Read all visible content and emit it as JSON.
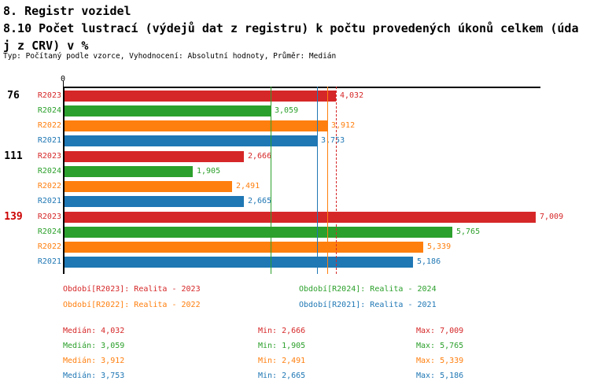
{
  "title": "8. Registr vozidel",
  "subtitle_line1": "8.10 Počet lustrací (výdejů dat z registru) k počtu provedených úkonů celkem (úda",
  "subtitle_line2": "j z CRV) v %",
  "meta_line": "Typ: Počítaný podle vzorce, Vyhodnocení: Absolutní hodnoty, Průměr: Medián",
  "colors": {
    "series": {
      "R2023": "#d62728",
      "R2024": "#2ca02c",
      "R2022": "#ff7f0e",
      "R2021": "#1f77b4"
    },
    "axis": "#000000",
    "highlight_group_label": "#cc0000",
    "group_label": "#000000"
  },
  "chart_data": {
    "type": "bar",
    "orientation": "horizontal",
    "value_axis": {
      "zero_label": "0",
      "xlim": [
        0,
        7100
      ],
      "grid": false
    },
    "series_order": [
      "R2023",
      "R2024",
      "R2022",
      "R2021"
    ],
    "groups": [
      {
        "label": "76",
        "highlighted": false,
        "bars": [
          {
            "series": "R2023",
            "value": 4032,
            "display": "4,032"
          },
          {
            "series": "R2024",
            "value": 3059,
            "display": "3,059"
          },
          {
            "series": "R2022",
            "value": 3912,
            "display": "3,912"
          },
          {
            "series": "R2021",
            "value": 3753,
            "display": "3,753"
          }
        ]
      },
      {
        "label": "111",
        "highlighted": false,
        "bars": [
          {
            "series": "R2023",
            "value": 2666,
            "display": "2,666"
          },
          {
            "series": "R2024",
            "value": 1905,
            "display": "1,905"
          },
          {
            "series": "R2022",
            "value": 2491,
            "display": "2,491"
          },
          {
            "series": "R2021",
            "value": 2665,
            "display": "2,665"
          }
        ]
      },
      {
        "label": "139",
        "highlighted": true,
        "bars": [
          {
            "series": "R2023",
            "value": 7009,
            "display": "7,009"
          },
          {
            "series": "R2024",
            "value": 5765,
            "display": "5,765"
          },
          {
            "series": "R2022",
            "value": 5339,
            "display": "5,339"
          },
          {
            "series": "R2021",
            "value": 5186,
            "display": "5,186"
          }
        ]
      }
    ],
    "median_lines": [
      {
        "series": "R2023",
        "value": 4032,
        "style": "dashed"
      },
      {
        "series": "R2024",
        "value": 3059,
        "style": "solid"
      },
      {
        "series": "R2022",
        "value": 3912,
        "style": "solid"
      },
      {
        "series": "R2021",
        "value": 3753,
        "style": "solid"
      }
    ]
  },
  "legend": [
    {
      "series": "R2023",
      "label": "Období[R2023]: Realita - 2023"
    },
    {
      "series": "R2024",
      "label": "Období[R2024]: Realita - 2024"
    },
    {
      "series": "R2022",
      "label": "Období[R2022]: Realita - 2022"
    },
    {
      "series": "R2021",
      "label": "Období[R2021]: Realita - 2021"
    }
  ],
  "stats_labels": {
    "median": "Medián:",
    "min": "Min:",
    "max": "Max:"
  },
  "stats": [
    {
      "series": "R2023",
      "median": "4,032",
      "min": "2,666",
      "max": "7,009"
    },
    {
      "series": "R2024",
      "median": "3,059",
      "min": "1,905",
      "max": "5,765"
    },
    {
      "series": "R2022",
      "median": "3,912",
      "min": "2,491",
      "max": "5,339"
    },
    {
      "series": "R2021",
      "median": "3,753",
      "min": "2,665",
      "max": "5,186"
    }
  ]
}
